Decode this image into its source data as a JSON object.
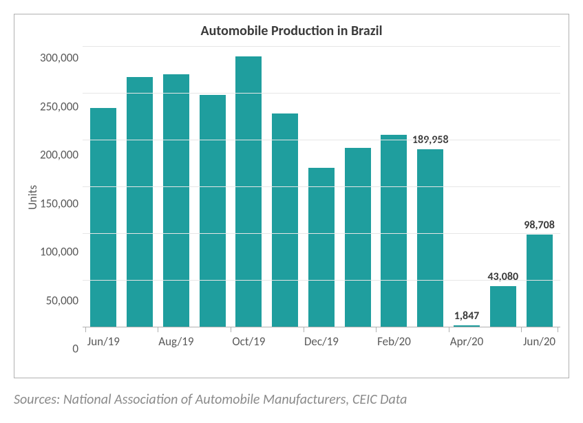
{
  "chart": {
    "type": "bar",
    "title": "Automobile Production in Brazil",
    "title_fontsize": 20,
    "ylabel": "Units",
    "ylabel_fontsize": 17,
    "categories": [
      "Jun/19",
      "",
      "Aug/19",
      "",
      "Oct/19",
      "",
      "Dec/19",
      "",
      "Feb/20",
      "",
      "Apr/20",
      "",
      "Jun/20"
    ],
    "values": [
      234000,
      267000,
      270000,
      248000,
      289000,
      228000,
      170000,
      191000,
      205000,
      189958,
      1847,
      43080,
      98708
    ],
    "value_labels": [
      null,
      null,
      null,
      null,
      null,
      null,
      null,
      null,
      null,
      "189,958",
      "1,847",
      "43,080",
      "98,708"
    ],
    "bar_color": "#1f9e9e",
    "ylim": [
      0,
      300000
    ],
    "ytick_step": 50000,
    "yticks": [
      "300,000",
      "250,000",
      "200,000",
      "150,000",
      "100,000",
      "50,000",
      "0"
    ],
    "grid_color": "#e6e6e6",
    "axis_color": "#b0b0b0",
    "tick_fontsize": 17,
    "value_label_fontsize": 16,
    "background_color": "#ffffff",
    "border_color": "#b0b0b0",
    "bar_width_ratio": 0.72
  },
  "source_text": "Sources: National Association of Automobile Manufacturers, CEIC Data",
  "source_fontsize": 20,
  "source_color": "#8a8a8a"
}
